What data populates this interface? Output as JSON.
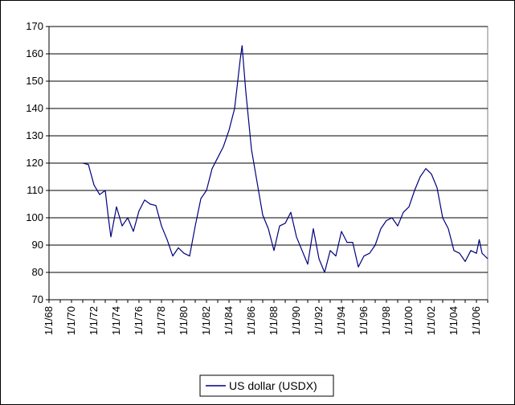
{
  "chart_data": {
    "type": "line",
    "title": "",
    "xlabel": "",
    "ylabel": "",
    "ylim": [
      70,
      170
    ],
    "yticks": [
      70,
      80,
      90,
      100,
      110,
      120,
      130,
      140,
      150,
      160,
      170
    ],
    "xlim": [
      "1/1/68",
      "1/1/07"
    ],
    "xtick_labels": [
      "1/1/68",
      "1/1/70",
      "1/1/72",
      "1/1/74",
      "1/1/76",
      "1/1/78",
      "1/1/80",
      "1/1/82",
      "1/1/84",
      "1/1/86",
      "1/1/88",
      "1/1/90",
      "1/1/92",
      "1/1/94",
      "1/1/96",
      "1/1/98",
      "1/1/00",
      "1/1/02",
      "1/1/04",
      "1/1/06"
    ],
    "grid": true,
    "legend": "bottom-center",
    "colors": {
      "series": "#000080",
      "grid": "#000000",
      "plot_bg": "#ffffff"
    },
    "series": [
      {
        "name": "US dollar (USDX)",
        "x": [
          "1/1/71",
          "7/1/71",
          "1/1/72",
          "7/1/72",
          "1/1/73",
          "4/1/73",
          "7/1/73",
          "1/1/74",
          "7/1/74",
          "1/1/75",
          "7/1/75",
          "1/1/76",
          "7/1/76",
          "1/1/77",
          "7/1/77",
          "1/1/78",
          "7/1/78",
          "1/1/79",
          "7/1/79",
          "1/1/80",
          "7/1/80",
          "1/1/81",
          "7/1/81",
          "1/1/82",
          "7/1/82",
          "1/1/83",
          "7/1/83",
          "1/1/84",
          "7/1/84",
          "1/1/85",
          "3/1/85",
          "7/1/85",
          "1/1/86",
          "7/1/86",
          "1/1/87",
          "7/1/87",
          "1/1/88",
          "7/1/88",
          "1/1/89",
          "7/1/89",
          "1/1/90",
          "7/1/90",
          "1/1/91",
          "7/1/91",
          "1/1/92",
          "7/1/92",
          "1/1/93",
          "7/1/93",
          "1/1/94",
          "7/1/94",
          "1/1/95",
          "7/1/95",
          "1/1/96",
          "7/1/96",
          "1/1/97",
          "7/1/97",
          "1/1/98",
          "7/1/98",
          "1/1/99",
          "7/1/99",
          "1/1/00",
          "7/1/00",
          "1/1/01",
          "7/1/01",
          "1/1/02",
          "7/1/02",
          "1/1/03",
          "7/1/03",
          "1/1/04",
          "7/1/04",
          "1/1/05",
          "7/1/05",
          "1/1/06",
          "4/1/06",
          "7/1/06",
          "1/1/07"
        ],
        "values": [
          120,
          119.5,
          112,
          108.5,
          110,
          101,
          93,
          104,
          97,
          100,
          95,
          102.5,
          106.5,
          105,
          104.5,
          97,
          92,
          86,
          89,
          87,
          86,
          97,
          107,
          110,
          118,
          122,
          126,
          132,
          140,
          158,
          163,
          146,
          125,
          113,
          101,
          96,
          88,
          97,
          98,
          102,
          93,
          88,
          83,
          96,
          85,
          80,
          88,
          86,
          95,
          91,
          91,
          82,
          86,
          87,
          90,
          96,
          99,
          100,
          97,
          102,
          104,
          110,
          115,
          118,
          116,
          111,
          100,
          96,
          88,
          87,
          84,
          88,
          87,
          92,
          87,
          85
        ]
      }
    ]
  }
}
